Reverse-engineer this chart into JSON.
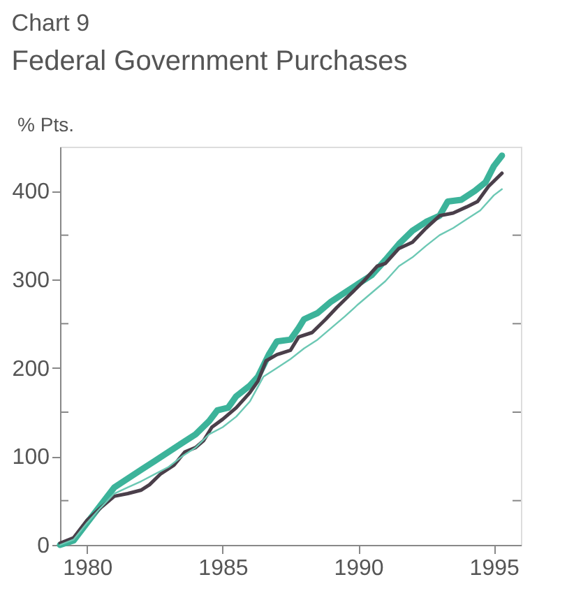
{
  "chart_data": {
    "type": "line",
    "title": "Chart 9",
    "subtitle": "Federal Government Purchases",
    "ylabel": "% Pts.",
    "xlim": [
      1979,
      1996
    ],
    "xticks": [
      1980,
      1985,
      1990,
      1995
    ],
    "ylim": [
      0,
      450
    ],
    "yticks": [
      0,
      {
        "value": 50,
        "label": null
      },
      100,
      {
        "value": 150,
        "label": null
      },
      200,
      {
        "value": 250,
        "label": null
      },
      300,
      {
        "value": 350,
        "label": null
      },
      400
    ],
    "grid": false,
    "legend": false,
    "line_style": "solid",
    "marker": "none",
    "series": [
      {
        "color": "#3cb39a",
        "x": [
          1979.0,
          1979.5,
          1980.0,
          1980.5,
          1981.0,
          1981.5,
          1982.0,
          1982.5,
          1983.0,
          1983.5,
          1984.0,
          1984.5,
          1984.8,
          1985.2,
          1985.5,
          1986.0,
          1986.3,
          1986.7,
          1987.0,
          1987.5,
          1987.8,
          1988.0,
          1988.5,
          1989.0,
          1989.5,
          1990.0,
          1990.5,
          1991.0,
          1991.5,
          1992.0,
          1992.5,
          1993.0,
          1993.3,
          1993.8,
          1994.3,
          1994.7,
          1995.0,
          1995.3
        ],
        "values": [
          0,
          5,
          25,
          45,
          65,
          75,
          85,
          95,
          105,
          115,
          125,
          140,
          152,
          155,
          168,
          180,
          190,
          215,
          230,
          232,
          245,
          255,
          262,
          275,
          285,
          295,
          305,
          322,
          340,
          355,
          365,
          372,
          388,
          390,
          400,
          410,
          428,
          440
        ]
      },
      {
        "color": "#4a3f4a",
        "x": [
          1979.0,
          1979.5,
          1980.0,
          1980.5,
          1981.0,
          1981.5,
          1982.0,
          1982.3,
          1982.7,
          1983.2,
          1983.6,
          1984.0,
          1984.3,
          1984.6,
          1985.0,
          1985.5,
          1986.0,
          1986.3,
          1986.6,
          1987.0,
          1987.5,
          1987.8,
          1988.3,
          1988.8,
          1989.2,
          1989.7,
          1990.2,
          1990.7,
          1991.0,
          1991.5,
          1992.0,
          1992.5,
          1993.0,
          1993.5,
          1994.0,
          1994.4,
          1994.8,
          1995.3
        ],
        "values": [
          2,
          8,
          28,
          42,
          55,
          58,
          62,
          68,
          80,
          90,
          105,
          110,
          118,
          133,
          142,
          155,
          172,
          185,
          208,
          215,
          220,
          235,
          240,
          255,
          268,
          283,
          298,
          315,
          318,
          335,
          342,
          358,
          372,
          375,
          382,
          388,
          405,
          420
        ]
      },
      {
        "color": "#6cc8b4",
        "x": [
          1979.0,
          1979.5,
          1980.0,
          1980.5,
          1981.0,
          1981.5,
          1982.0,
          1982.5,
          1983.0,
          1983.5,
          1984.0,
          1984.5,
          1985.0,
          1985.5,
          1986.0,
          1986.5,
          1987.0,
          1987.5,
          1988.0,
          1988.5,
          1989.0,
          1989.5,
          1990.0,
          1990.5,
          1991.0,
          1991.5,
          1992.0,
          1992.5,
          1993.0,
          1993.5,
          1994.0,
          1994.5,
          1995.0,
          1995.3
        ],
        "values": [
          0,
          6,
          25,
          42,
          58,
          65,
          72,
          80,
          88,
          100,
          110,
          125,
          133,
          145,
          162,
          190,
          200,
          210,
          222,
          232,
          245,
          258,
          272,
          285,
          298,
          315,
          325,
          338,
          350,
          358,
          368,
          378,
          395,
          402
        ]
      }
    ]
  }
}
